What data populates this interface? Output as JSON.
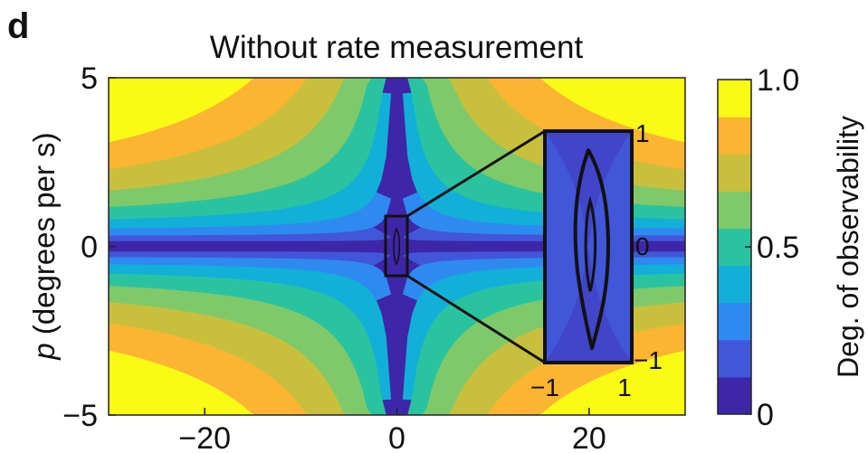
{
  "chart_data": {
    "type": "heatmap",
    "panel_label": "d",
    "title": "Without rate measurement",
    "ylabel_var": "p",
    "ylabel_rest": " (degrees per s)",
    "xlim": [
      -30,
      30
    ],
    "ylim": [
      -5,
      5
    ],
    "x_ticks": [
      -20,
      0,
      20
    ],
    "y_ticks": [
      5,
      0,
      -5
    ],
    "colormap": [
      "#3e26a8",
      "#4256d9",
      "#2f8af0",
      "#12b0d8",
      "#2ac3a0",
      "#80c96a",
      "#c8c03c",
      "#fbb533",
      "#f9fb15"
    ],
    "levels": 9,
    "contour_levels": [
      0.1,
      0.2,
      0.3,
      0.4,
      0.5,
      0.6,
      0.7,
      0.8,
      0.9
    ],
    "colorbar": {
      "label": "Deg. of observability",
      "range": [
        0,
        1.0
      ],
      "ticks": [
        {
          "value": 1.0,
          "label": "1.0"
        },
        {
          "value": 0.5,
          "label": "0.5"
        },
        {
          "value": 0,
          "label": "0"
        }
      ]
    },
    "zoom_box": {
      "x_range": [
        -1,
        1
      ],
      "y_range": [
        -1,
        1
      ],
      "inset_ticks": {
        "y_right": [
          "1",
          "0",
          "−1"
        ],
        "x_bottom": [
          "−1",
          "1"
        ]
      }
    },
    "tick_labels": {
      "x": [
        "−20",
        "0",
        "20"
      ],
      "y": [
        "5",
        "0",
        "−5"
      ]
    }
  }
}
